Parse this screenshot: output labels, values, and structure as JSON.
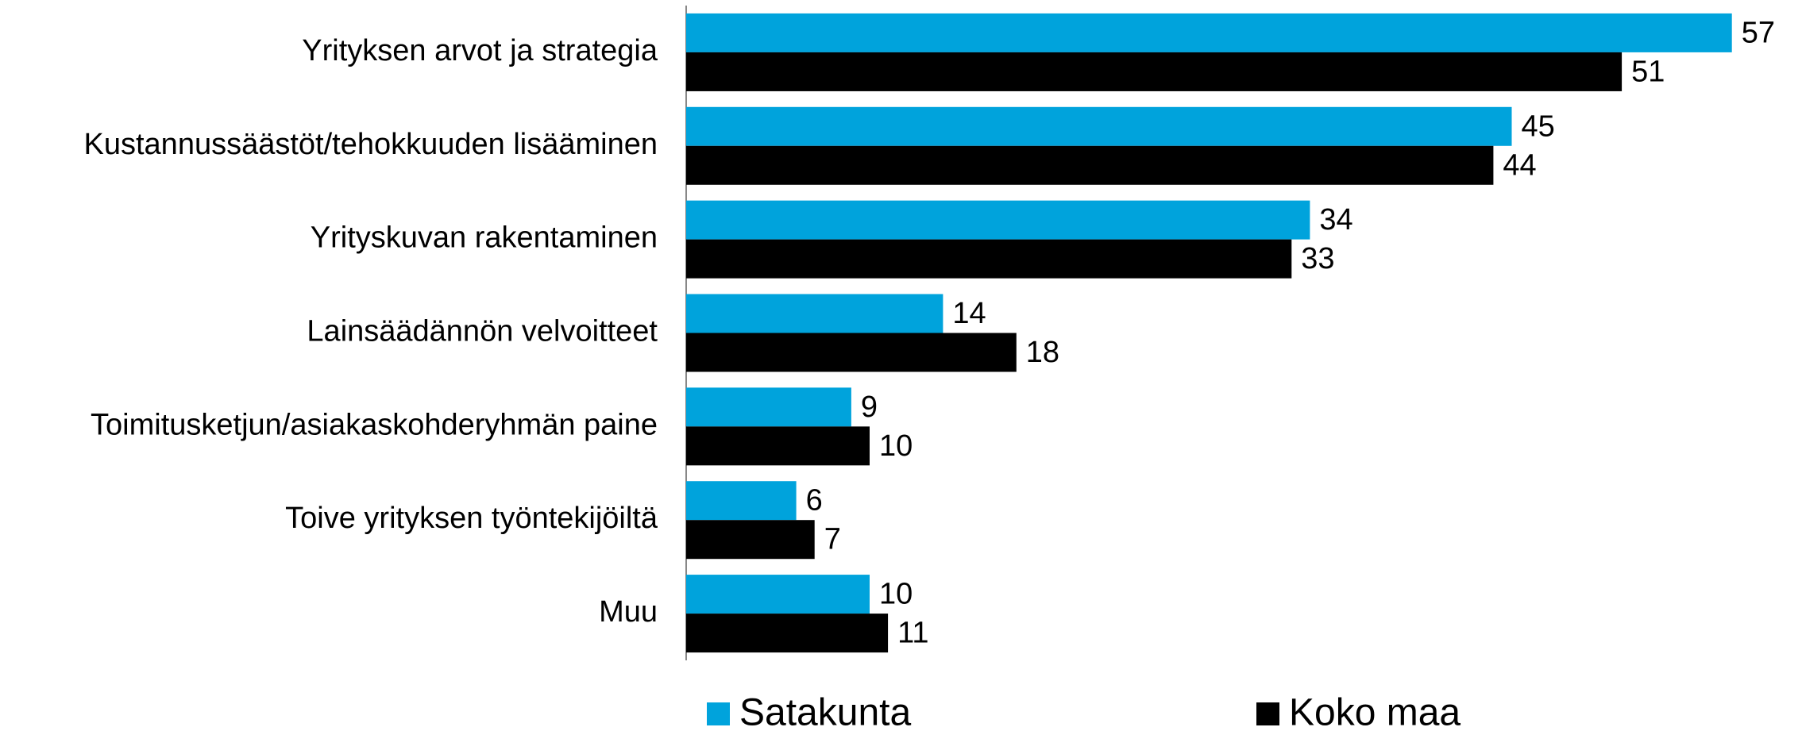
{
  "chart_data": {
    "type": "bar",
    "orientation": "horizontal",
    "categories": [
      "Yrityksen arvot ja strategia",
      "Kustannussäästöt/tehokkuuden lisääminen",
      "Yrityskuvan rakentaminen",
      "Lainsäädännön velvoitteet",
      "Toimitusketjun/asiakaskohderyhmän paine",
      "Toive yrityksen työntekijöiltä",
      "Muu"
    ],
    "series": [
      {
        "name": "Satakunta",
        "color": "#00a3dc",
        "values": [
          57,
          45,
          34,
          14,
          9,
          6,
          10
        ]
      },
      {
        "name": "Koko maa",
        "color": "#000000",
        "values": [
          51,
          44,
          33,
          18,
          10,
          7,
          11
        ]
      }
    ],
    "xlim": [
      0,
      60
    ],
    "grid": false,
    "legend": "bottom"
  }
}
